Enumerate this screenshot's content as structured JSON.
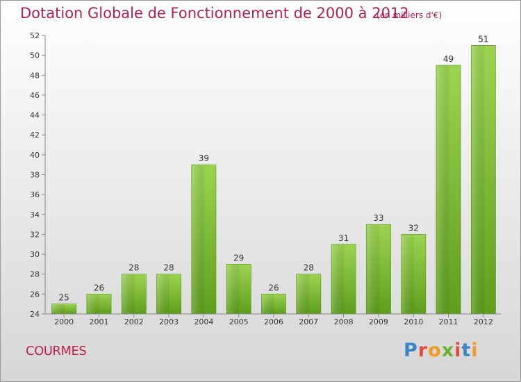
{
  "header": {
    "title": "Dotation Globale de Fonctionnement de 2000 à 2012",
    "subtitle": "(en milliers d'€)"
  },
  "footer": {
    "commune": "COURMES",
    "logo_text": "Proxiti",
    "logo_colors": [
      "#3a86c8",
      "#e64a3b",
      "#f29a1e",
      "#6ab42d",
      "#e64a3b",
      "#3a86c8",
      "#f29a1e"
    ]
  },
  "chart_data": {
    "type": "bar",
    "categories": [
      "2000",
      "2001",
      "2002",
      "2003",
      "2004",
      "2005",
      "2006",
      "2007",
      "2008",
      "2009",
      "2010",
      "2011",
      "2012"
    ],
    "values": [
      25,
      26,
      28,
      28,
      39,
      29,
      26,
      28,
      31,
      33,
      32,
      49,
      51
    ],
    "title": "Dotation Globale de Fonctionnement de 2000 à 2012",
    "subtitle": "(en milliers d'€)",
    "xlabel": "",
    "ylabel": "",
    "ylim": [
      24,
      52
    ],
    "yticks": [
      24,
      26,
      28,
      30,
      32,
      34,
      36,
      38,
      40,
      42,
      44,
      46,
      48,
      50,
      52
    ],
    "grid": false,
    "bar_color": "#7cc23a"
  }
}
